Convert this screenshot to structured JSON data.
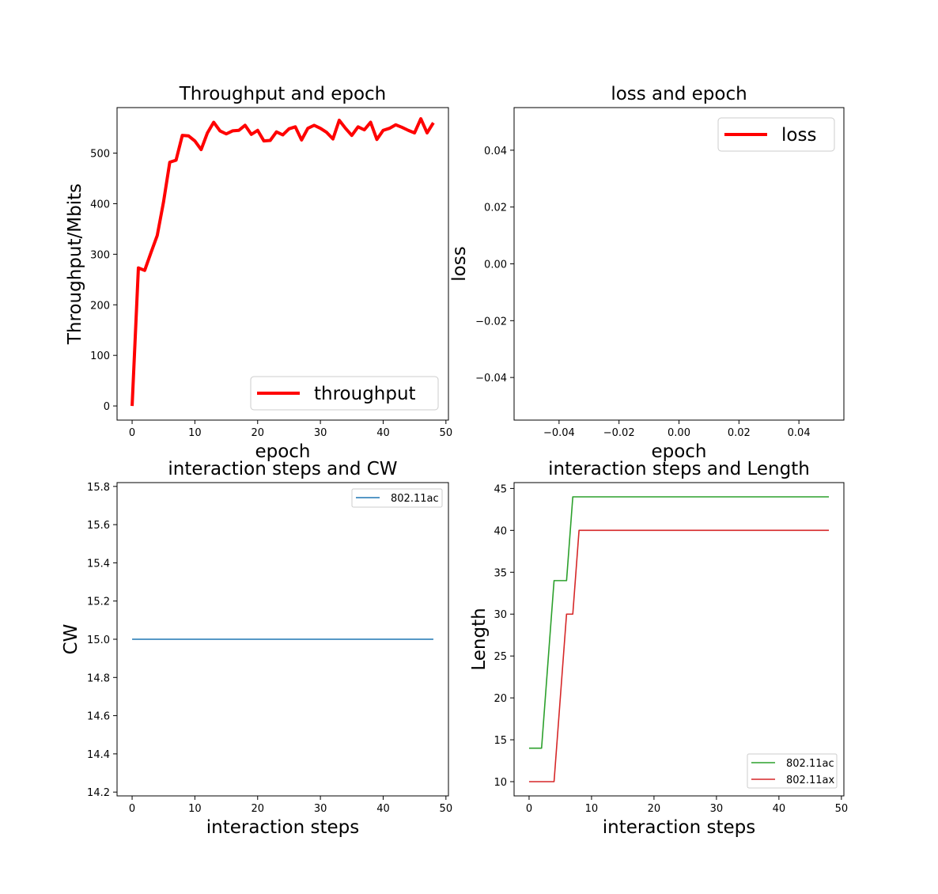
{
  "chart_data": [
    {
      "type": "line",
      "title": "Throughput and epoch",
      "xlabel": "epoch",
      "ylabel": "Throughput/Mbits",
      "xlim": [
        -2.4,
        50.4
      ],
      "ylim": [
        -28,
        590
      ],
      "xticks": [
        "0",
        "10",
        "20",
        "30",
        "40",
        "50"
      ],
      "yticks": [
        "0",
        "100",
        "200",
        "300",
        "400",
        "500"
      ],
      "legend": "lower-right",
      "series": [
        {
          "name": "throughput",
          "color": "#ff0000",
          "x": [
            0,
            1,
            2,
            3,
            4,
            5,
            6,
            7,
            8,
            9,
            10,
            11,
            12,
            13,
            14,
            15,
            16,
            17,
            18,
            19,
            20,
            21,
            22,
            23,
            24,
            25,
            26,
            27,
            28,
            29,
            30,
            31,
            32,
            33,
            34,
            35,
            36,
            37,
            38,
            39,
            40,
            41,
            42,
            43,
            44,
            45,
            46,
            47,
            48
          ],
          "y": [
            0,
            273,
            268,
            303,
            337,
            403,
            482,
            486,
            535,
            534,
            524,
            507,
            540,
            561,
            544,
            538,
            544,
            545,
            555,
            537,
            545,
            524,
            525,
            542,
            536,
            548,
            552,
            526,
            549,
            555,
            549,
            541,
            528,
            565,
            549,
            535,
            552,
            546,
            561,
            527,
            545,
            549,
            556,
            551,
            545,
            540,
            568,
            540,
            560
          ]
        }
      ]
    },
    {
      "type": "line",
      "title": "loss and epoch",
      "xlabel": "epoch",
      "ylabel": "loss",
      "xlim": [
        -0.055,
        0.055
      ],
      "ylim": [
        -0.055,
        0.055
      ],
      "xticks": [
        "−0.04",
        "−0.02",
        "0.00",
        "0.02",
        "0.04"
      ],
      "yticks": [
        "−0.04",
        "−0.02",
        "0.00",
        "0.02",
        "0.04"
      ],
      "legend": "upper-right",
      "series": [
        {
          "name": "loss",
          "color": "#ff0000",
          "x": [],
          "y": []
        }
      ]
    },
    {
      "type": "line",
      "title": "interaction steps and CW",
      "xlabel": "interaction steps",
      "ylabel": "CW",
      "xlim": [
        -2.4,
        50.4
      ],
      "ylim": [
        14.18,
        15.82
      ],
      "xticks": [
        "0",
        "10",
        "20",
        "30",
        "40",
        "50"
      ],
      "yticks": [
        "14.2",
        "14.4",
        "14.6",
        "14.8",
        "15.0",
        "15.2",
        "15.4",
        "15.6",
        "15.8"
      ],
      "legend": "upper-right",
      "series": [
        {
          "name": "802.11ac",
          "color": "#1f77b4",
          "x": [
            0,
            48
          ],
          "y": [
            15,
            15
          ]
        }
      ]
    },
    {
      "type": "line",
      "title": "interaction steps and Length",
      "xlabel": "interaction steps",
      "ylabel": "Length",
      "xlim": [
        -2.4,
        50.4
      ],
      "ylim": [
        8.3,
        45.7
      ],
      "xticks": [
        "0",
        "10",
        "20",
        "30",
        "40",
        "50"
      ],
      "yticks": [
        "10",
        "15",
        "20",
        "25",
        "30",
        "35",
        "40",
        "45"
      ],
      "legend": "lower-right",
      "series": [
        {
          "name": "802.11ac",
          "color": "#2ca02c",
          "x": [
            0,
            2,
            4,
            6,
            7,
            48
          ],
          "y": [
            14,
            14,
            34,
            34,
            44,
            44
          ]
        },
        {
          "name": "802.11ax",
          "color": "#d62728",
          "x": [
            0,
            4,
            6,
            7,
            8,
            48
          ],
          "y": [
            10,
            10,
            30,
            30,
            40,
            40
          ]
        }
      ]
    }
  ]
}
